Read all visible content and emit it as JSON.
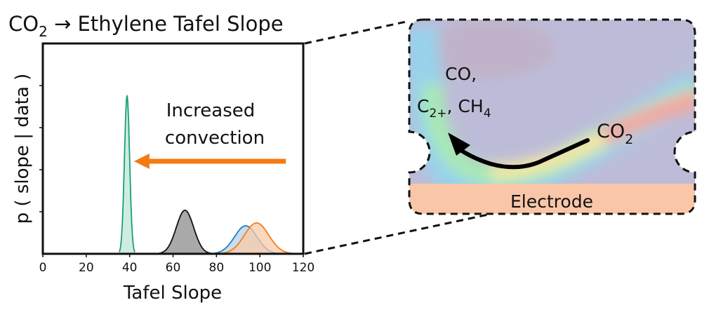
{
  "chart_data": {
    "type": "area",
    "title": "CO₂ → Ethylene Tafel Slope",
    "title_parts": {
      "pre": "CO",
      "sub": "2",
      "post": " → Ethylene Tafel Slope"
    },
    "xlabel": "Tafel Slope",
    "ylabel": "p ( slope | data )",
    "xlim": [
      0,
      120
    ],
    "ylim": [
      0,
      1
    ],
    "xticks": [
      "0",
      "20",
      "40",
      "60",
      "80",
      "100",
      "120"
    ],
    "xtick_values": [
      0,
      20,
      40,
      60,
      80,
      100,
      120
    ],
    "ytick_values": [
      0.2,
      0.4,
      0.6,
      0.8
    ],
    "grid": false,
    "series": [
      {
        "name": "green",
        "color": "#1a9e7a",
        "fill": "#bfe6d8",
        "mean": 38.8,
        "sd": 1.2,
        "peak": 0.75
      },
      {
        "name": "gray",
        "color": "#111111",
        "fill": "#a9a9a9",
        "mean": 65.5,
        "sd": 4.0,
        "peak": 0.207
      },
      {
        "name": "blue",
        "color": "#1f7fbf",
        "fill": "#b5d3ea",
        "mean": 93.5,
        "sd": 5.2,
        "peak": 0.133
      },
      {
        "name": "orange",
        "color": "#f07f1e",
        "fill": "#f9c9a8",
        "mean": 98.5,
        "sd": 5.6,
        "peak": 0.147
      }
    ],
    "annotations": [
      {
        "text_line1": "Increased",
        "text_line2": "convection",
        "arrow_from": 112,
        "arrow_to": 42,
        "arrow_y": 0.44,
        "color": "#f57a14"
      }
    ]
  },
  "inset": {
    "products_line1": "CO,",
    "products_c": "C",
    "products_c_sub": "2+",
    "products_sep": ", CH",
    "products_ch_sub": "4",
    "reactant": "CO",
    "reactant_sub": "2",
    "electrode_label": "Electrode",
    "electrode_color": "#f9c6a8",
    "background_color": "#bdbcd8"
  }
}
